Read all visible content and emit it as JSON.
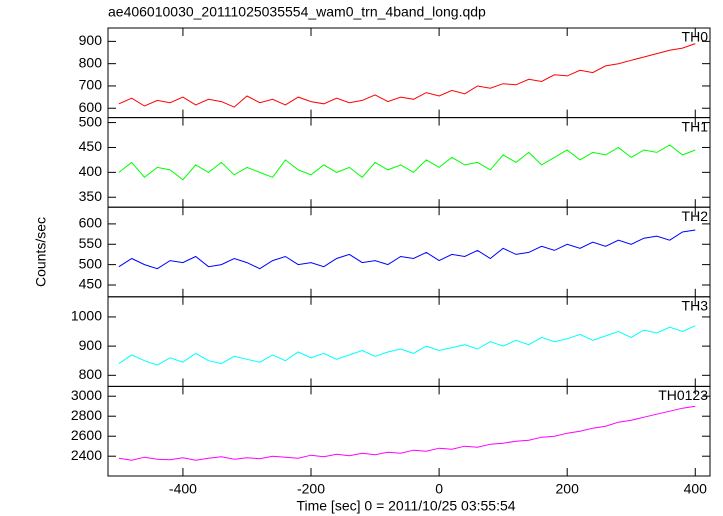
{
  "chart_data": {
    "type": "line",
    "title": "ae406010030_20111025035554_wam0_trn_4band_long.qdp",
    "xlabel": "Time [sec] 0 = 2011/10/25 03:55:54",
    "ylabel": "Counts/sec",
    "x": [
      -500,
      -480,
      -460,
      -440,
      -420,
      -400,
      -380,
      -360,
      -340,
      -320,
      -300,
      -280,
      -260,
      -240,
      -220,
      -200,
      -180,
      -160,
      -140,
      -120,
      -100,
      -80,
      -60,
      -40,
      -20,
      0,
      20,
      40,
      60,
      80,
      100,
      120,
      140,
      160,
      180,
      200,
      220,
      240,
      260,
      280,
      300,
      320,
      340,
      360,
      380,
      400
    ],
    "xlim": [
      -517,
      423
    ],
    "xticks": [
      -400,
      -200,
      0,
      200,
      400
    ],
    "series": [
      {
        "name": "TH0",
        "color": "#ff0000",
        "ylim": [
          558,
          960
        ],
        "yticks": [
          600,
          700,
          800,
          900
        ],
        "values": [
          620,
          645,
          610,
          635,
          625,
          650,
          615,
          640,
          630,
          605,
          655,
          625,
          640,
          615,
          650,
          630,
          620,
          645,
          625,
          635,
          660,
          630,
          650,
          640,
          670,
          655,
          680,
          665,
          700,
          690,
          710,
          705,
          730,
          720,
          750,
          745,
          770,
          760,
          790,
          800,
          815,
          830,
          845,
          860,
          870,
          890
        ]
      },
      {
        "name": "TH1",
        "color": "#00ff00",
        "ylim": [
          330,
          510
        ],
        "yticks": [
          350,
          400,
          450,
          500
        ],
        "values": [
          400,
          420,
          390,
          410,
          405,
          385,
          415,
          400,
          420,
          395,
          410,
          400,
          390,
          425,
          405,
          395,
          415,
          400,
          410,
          390,
          420,
          405,
          415,
          400,
          425,
          410,
          430,
          415,
          420,
          405,
          435,
          420,
          440,
          415,
          430,
          445,
          425,
          440,
          435,
          450,
          430,
          445,
          440,
          455,
          435,
          445
        ]
      },
      {
        "name": "TH2",
        "color": "#0000ff",
        "ylim": [
          421,
          641
        ],
        "yticks": [
          450,
          500,
          550,
          600
        ],
        "values": [
          495,
          515,
          500,
          490,
          510,
          505,
          520,
          495,
          500,
          515,
          505,
          490,
          510,
          520,
          500,
          505,
          495,
          515,
          525,
          505,
          510,
          500,
          520,
          515,
          530,
          510,
          525,
          520,
          535,
          515,
          540,
          525,
          530,
          545,
          535,
          550,
          540,
          555,
          545,
          560,
          550,
          565,
          570,
          560,
          580,
          585
        ]
      },
      {
        "name": "TH3",
        "color": "#00ffff",
        "ylim": [
          762,
          1069
        ],
        "yticks": [
          800,
          900,
          1000
        ],
        "values": [
          840,
          870,
          850,
          835,
          860,
          845,
          875,
          850,
          840,
          865,
          855,
          845,
          870,
          850,
          880,
          860,
          875,
          855,
          870,
          885,
          865,
          880,
          890,
          875,
          900,
          885,
          895,
          905,
          890,
          915,
          900,
          920,
          905,
          930,
          915,
          925,
          940,
          920,
          935,
          950,
          930,
          955,
          945,
          965,
          950,
          970
        ]
      },
      {
        "name": "TH0123",
        "color": "#ff00ff",
        "ylim": [
          2202,
          3098
        ],
        "yticks": [
          2400,
          2600,
          2800,
          3000
        ],
        "values": [
          2380,
          2360,
          2390,
          2370,
          2365,
          2385,
          2360,
          2380,
          2395,
          2370,
          2385,
          2375,
          2400,
          2390,
          2380,
          2410,
          2395,
          2420,
          2405,
          2430,
          2415,
          2440,
          2430,
          2460,
          2450,
          2480,
          2470,
          2500,
          2490,
          2520,
          2530,
          2550,
          2560,
          2590,
          2600,
          2630,
          2650,
          2680,
          2700,
          2740,
          2760,
          2790,
          2820,
          2850,
          2880,
          2900
        ]
      }
    ]
  }
}
